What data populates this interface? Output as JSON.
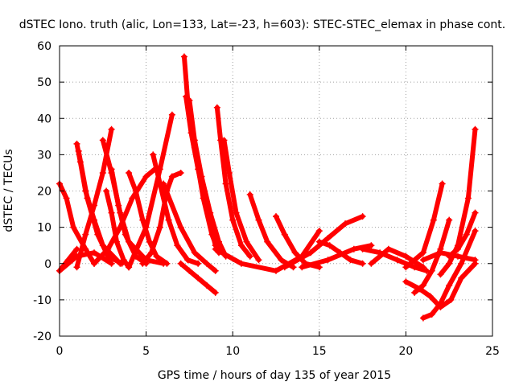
{
  "chart_data": {
    "type": "scatter",
    "title": "dSTEC Iono. truth (alic, Lon=133, Lat=-23, h=603): STEC-STEC_elemax in phase cont.",
    "xlabel": "GPS time / hours of day 135 of year 2015",
    "ylabel": "dSTEC  / TECUs",
    "xlim": [
      0,
      25
    ],
    "ylim": [
      -20,
      60
    ],
    "xticks": [
      0,
      5,
      10,
      15,
      20,
      25
    ],
    "yticks": [
      -20,
      -10,
      0,
      10,
      20,
      30,
      40,
      50,
      60
    ],
    "grid": true,
    "marker": "plus",
    "color": "#ff0000",
    "series": [
      {
        "x": [
          0.0,
          0.4,
          0.8,
          1.5,
          2.0
        ],
        "y": [
          22,
          18,
          10,
          4,
          0
        ]
      },
      {
        "x": [
          0.0,
          1.0,
          2.0,
          3.0
        ],
        "y": [
          -2,
          2,
          3,
          0
        ]
      },
      {
        "x": [
          0.0,
          0.5,
          1.0
        ],
        "y": [
          -2,
          1,
          4
        ]
      },
      {
        "x": [
          1.0,
          1.5,
          2.0,
          2.5,
          3.0
        ],
        "y": [
          -1,
          8,
          16,
          25,
          37
        ]
      },
      {
        "x": [
          1.1,
          1.6,
          2.2,
          2.8,
          3.6
        ],
        "y": [
          31,
          18,
          8,
          2,
          0
        ]
      },
      {
        "x": [
          1.0,
          1.2,
          1.5,
          2.0,
          2.5,
          3.5
        ],
        "y": [
          33,
          28,
          20,
          12,
          5,
          0
        ]
      },
      {
        "x": [
          2.7,
          3.0,
          3.3,
          3.7,
          4.0
        ],
        "y": [
          20,
          14,
          6,
          1,
          -1
        ]
      },
      {
        "x": [
          2.5,
          3.0,
          3.5,
          4.0,
          5.0,
          6.0
        ],
        "y": [
          34,
          25,
          14,
          6,
          1,
          0
        ]
      },
      {
        "x": [
          3.0,
          3.4,
          3.8,
          4.4,
          5.0
        ],
        "y": [
          26,
          16,
          8,
          2,
          0
        ]
      },
      {
        "x": [
          2.0,
          2.8,
          3.5,
          4.2,
          5.0,
          5.5
        ],
        "y": [
          0,
          4,
          10,
          18,
          24,
          26
        ]
      },
      {
        "x": [
          4.0,
          4.4,
          4.8,
          5.2,
          5.6,
          6.2
        ],
        "y": [
          25,
          20,
          12,
          6,
          2,
          0
        ]
      },
      {
        "x": [
          4.0,
          5.0,
          5.8,
          6.5
        ],
        "y": [
          -1,
          10,
          26,
          41
        ]
      },
      {
        "x": [
          5.4,
          5.8,
          6.3,
          6.8,
          7.4,
          8.0
        ],
        "y": [
          30,
          22,
          12,
          5,
          1,
          0
        ]
      },
      {
        "x": [
          4.8,
          5.3,
          5.8,
          6.2,
          6.5,
          7.0
        ],
        "y": [
          0,
          3,
          10,
          20,
          24,
          25
        ]
      },
      {
        "x": [
          6.0,
          7.0,
          7.8,
          8.5,
          9.0
        ],
        "y": [
          22,
          10,
          3,
          0,
          -2
        ]
      },
      {
        "x": [
          7.2,
          7.4,
          7.8,
          8.3,
          8.8,
          9.2
        ],
        "y": [
          57,
          45,
          32,
          18,
          8,
          3
        ]
      },
      {
        "x": [
          7.3,
          7.6,
          8.0,
          8.5,
          9.0
        ],
        "y": [
          46,
          36,
          26,
          15,
          5
        ]
      },
      {
        "x": [
          7.5,
          7.8,
          8.2,
          8.7,
          9.2,
          9.6
        ],
        "y": [
          45,
          34,
          24,
          14,
          6,
          2
        ]
      },
      {
        "x": [
          7.0,
          7.5,
          8.0,
          8.5,
          9.0
        ],
        "y": [
          0,
          -2,
          -4,
          -6,
          -8
        ]
      },
      {
        "x": [
          9.1,
          9.3,
          9.6,
          10.0,
          10.5,
          11.0
        ],
        "y": [
          43,
          34,
          22,
          12,
          5,
          2
        ]
      },
      {
        "x": [
          9.5,
          9.8,
          10.2,
          10.8,
          11.5
        ],
        "y": [
          34,
          25,
          14,
          6,
          1
        ]
      },
      {
        "x": [
          11.0,
          11.5,
          12.0,
          12.8,
          13.5
        ],
        "y": [
          19,
          12,
          6,
          1,
          -1
        ]
      },
      {
        "x": [
          12.5,
          13.0,
          13.6,
          14.2,
          15.0
        ],
        "y": [
          13,
          8,
          3,
          0,
          -1
        ]
      },
      {
        "x": [
          9.0,
          10.5,
          12.5,
          14.0,
          15.0
        ],
        "y": [
          4,
          0,
          -2,
          2,
          9
        ]
      },
      {
        "x": [
          13.0,
          14.5,
          15.5,
          16.5,
          17.5
        ],
        "y": [
          -1,
          3,
          7,
          11,
          13
        ]
      },
      {
        "x": [
          15.0,
          15.6,
          16.2,
          16.8,
          17.5
        ],
        "y": [
          6,
          5,
          3,
          1,
          0
        ]
      },
      {
        "x": [
          14.0,
          15.5,
          17.0,
          18.0
        ],
        "y": [
          -1,
          1,
          4,
          5
        ]
      },
      {
        "x": [
          17.5,
          18.5,
          19.5,
          20.5,
          21.2
        ],
        "y": [
          4,
          3,
          1,
          -1,
          -2
        ]
      },
      {
        "x": [
          18.0,
          19.0,
          20.0,
          21.0
        ],
        "y": [
          0,
          4,
          2,
          -1
        ]
      },
      {
        "x": [
          20.0,
          21.0,
          21.6,
          22.1
        ],
        "y": [
          -1,
          3,
          12,
          22
        ]
      },
      {
        "x": [
          20.5,
          21.0,
          21.5,
          22.0,
          22.5
        ],
        "y": [
          -8,
          -6,
          -2,
          4,
          12
        ]
      },
      {
        "x": [
          20.0,
          20.8,
          21.4,
          22.0,
          22.6,
          23.2,
          24.0
        ],
        "y": [
          -5,
          -7,
          -9,
          -12,
          -10,
          -4,
          0
        ]
      },
      {
        "x": [
          21.0,
          21.5,
          22.0,
          22.5,
          23.2,
          24.0
        ],
        "y": [
          -15,
          -14,
          -11,
          -6,
          0,
          9
        ]
      },
      {
        "x": [
          22.0,
          22.5,
          23.0,
          23.6,
          24.0
        ],
        "y": [
          -3,
          0,
          5,
          18,
          37
        ]
      },
      {
        "x": [
          22.5,
          23.0,
          23.5,
          24.0
        ],
        "y": [
          2,
          4,
          8,
          14
        ]
      },
      {
        "x": [
          21.0,
          22.0,
          23.0,
          24.0
        ],
        "y": [
          1,
          3,
          2,
          1
        ]
      }
    ]
  }
}
